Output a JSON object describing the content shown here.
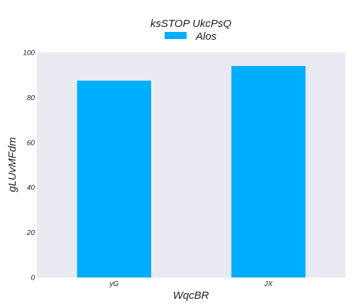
{
  "chart_data": {
    "type": "bar",
    "title": "ksSTOP UkcPsQ",
    "xlabel": "WqcBR",
    "ylabel": "gLUvMFdm",
    "categories": [
      "yG",
      "JX"
    ],
    "series": [
      {
        "name": "Alos",
        "values": [
          87.5,
          94.0
        ],
        "color": "#00aeff"
      }
    ],
    "ylim": [
      0,
      100
    ],
    "yticks": [
      0,
      20,
      40,
      60,
      80,
      100
    ],
    "grid": false,
    "legend": "top-center",
    "background": "#eaeaf2"
  }
}
